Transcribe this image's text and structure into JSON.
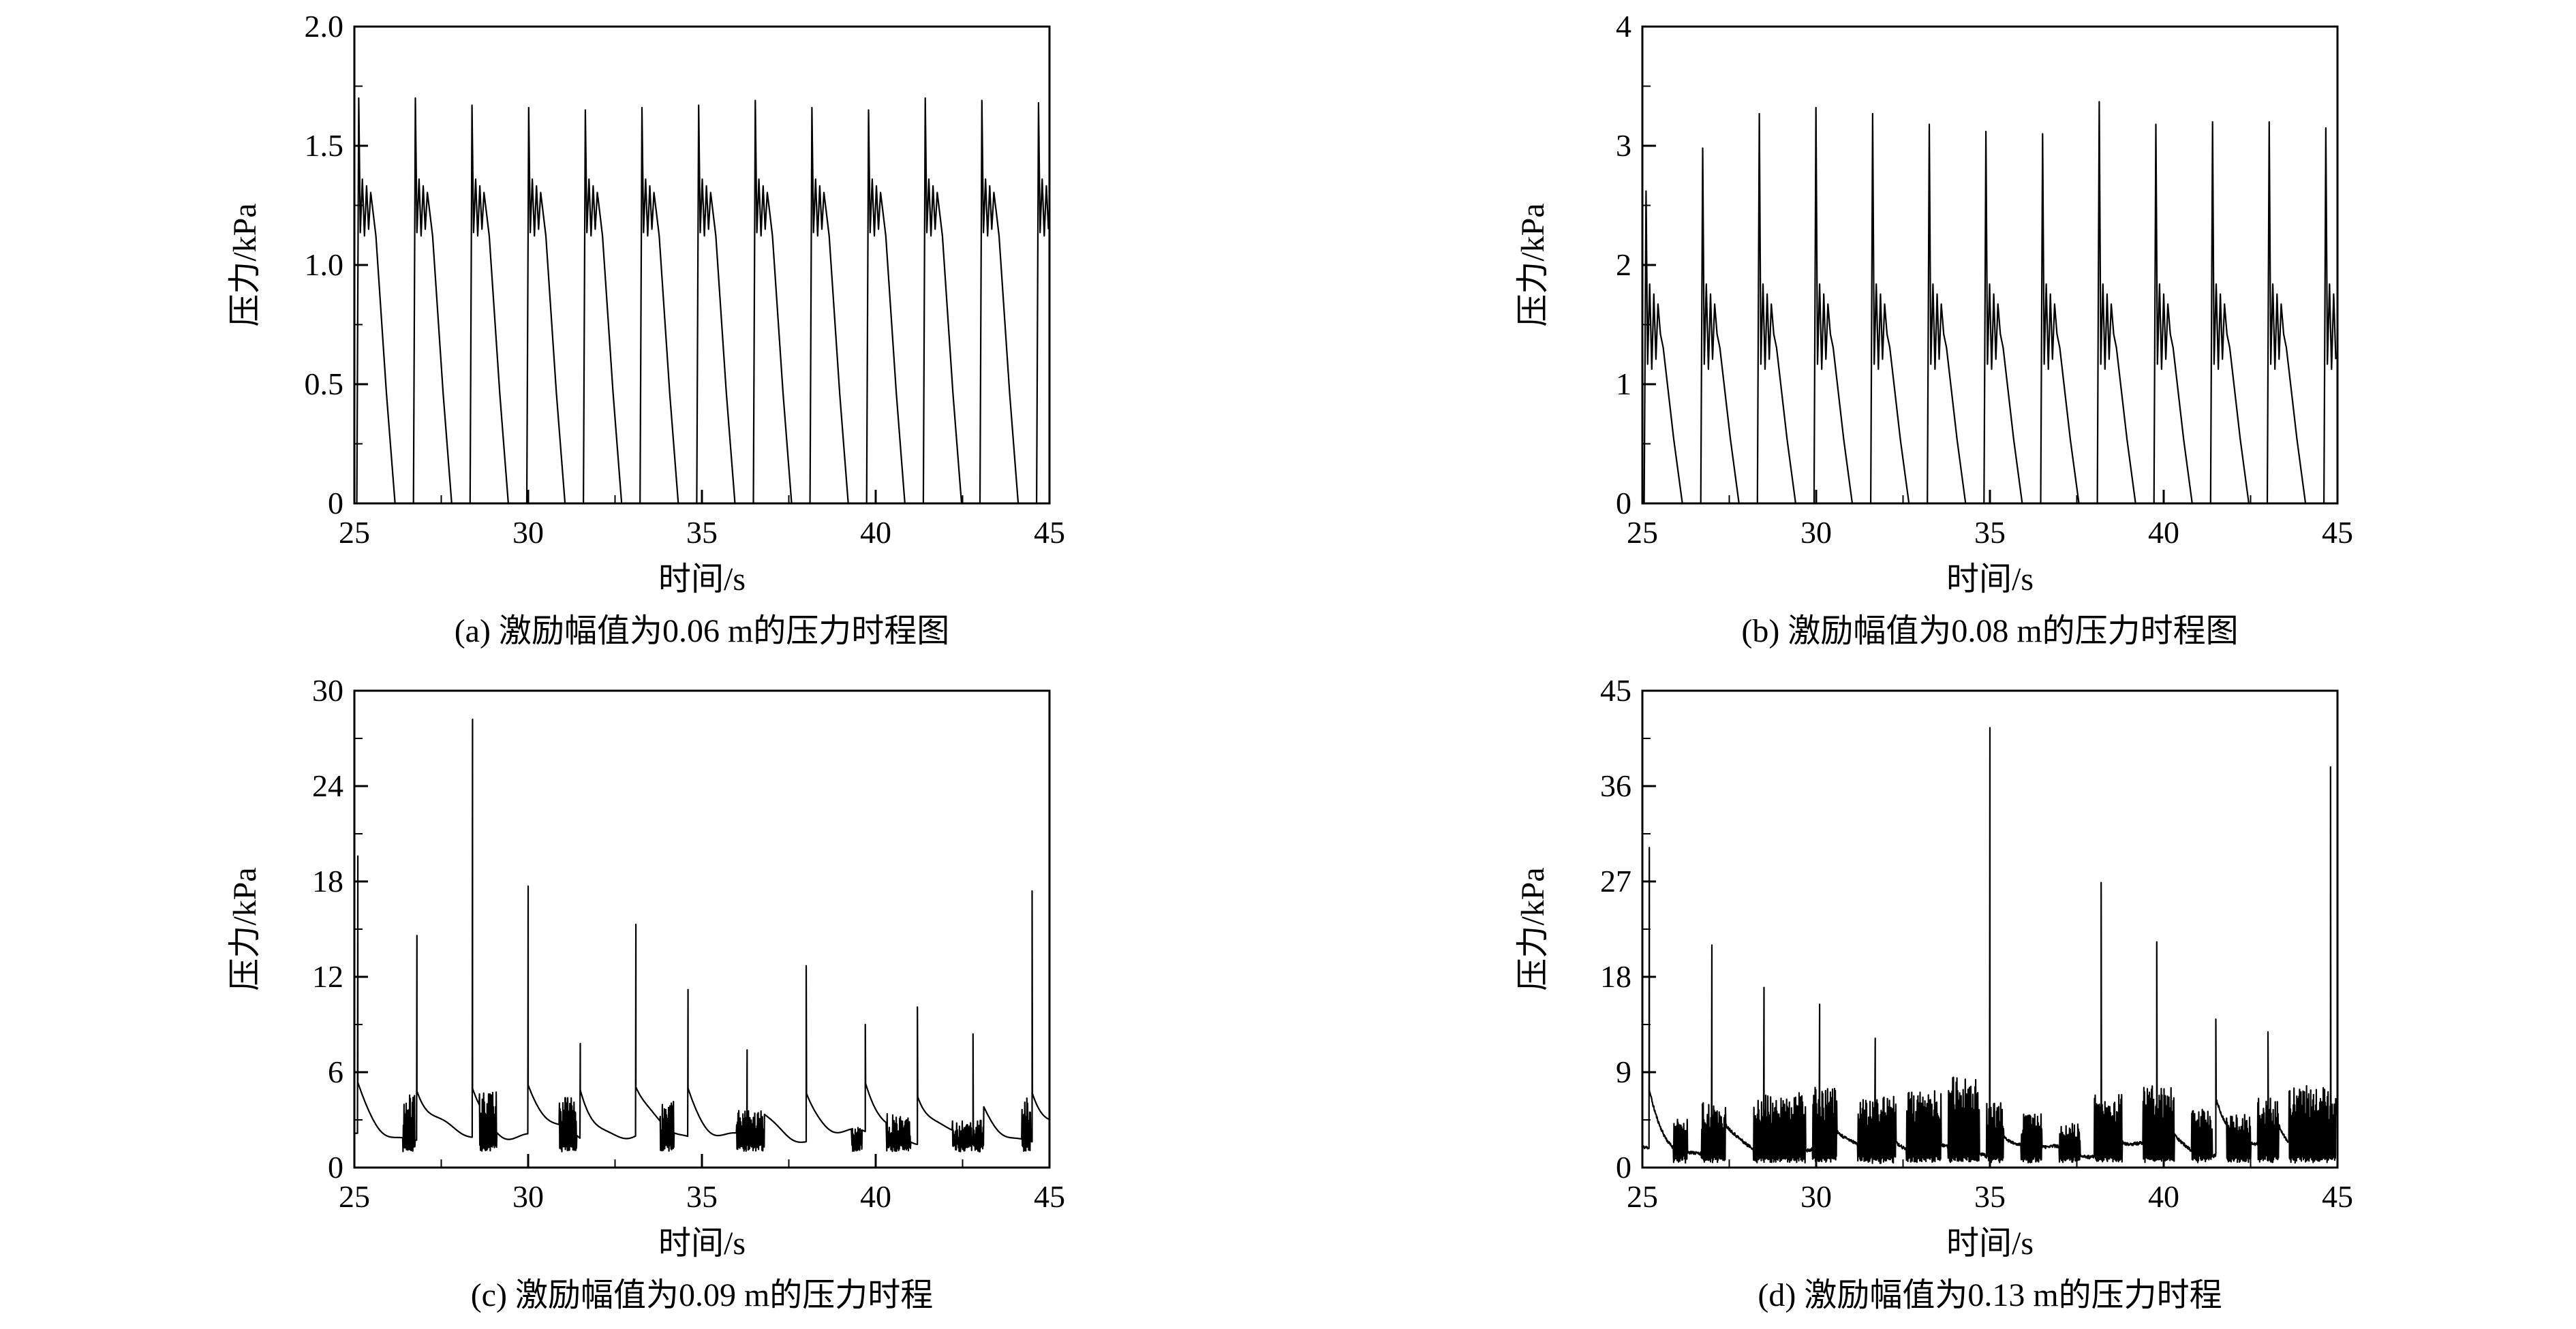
{
  "page": {
    "background": "#ffffff",
    "text_color": "#000000",
    "line_color": "#000000"
  },
  "chart_data": [
    {
      "id": "a",
      "type": "line",
      "caption": "(a) 激励幅值为0.06 m的压力时程图",
      "xlabel": "时间/s",
      "ylabel": "压力/kPa",
      "xlim": [
        25,
        45
      ],
      "ylim": [
        0,
        2.0
      ],
      "xticks": [
        25,
        30,
        35,
        40,
        45
      ],
      "xtick_labels": [
        "25",
        "30",
        "35",
        "40",
        "45"
      ],
      "yticks": [
        0,
        0.5,
        1.0,
        1.5,
        2.0
      ],
      "ytick_labels": [
        "0",
        "0.5",
        "1.0",
        "1.5",
        "2.0"
      ],
      "minor": {
        "x": 2.5,
        "y": 0.25
      },
      "signal": {
        "kind": "periodic",
        "t0": 25.07,
        "period": 1.63,
        "peaks": [
          1.7,
          1.7,
          1.67,
          1.66,
          1.65,
          1.66,
          1.67,
          1.69,
          1.66,
          1.65,
          1.7,
          1.69,
          1.68
        ],
        "plateau": 1.22,
        "osc": 0.14,
        "decay": 0.55
      }
    },
    {
      "id": "b",
      "type": "line",
      "caption": "(b) 激励幅值为0.08 m的压力时程图",
      "xlabel": "时间/s",
      "ylabel": "压力/kPa",
      "xlim": [
        25,
        45
      ],
      "ylim": [
        0,
        4
      ],
      "xticks": [
        25,
        30,
        35,
        40,
        45
      ],
      "xtick_labels": [
        "25",
        "30",
        "35",
        "40",
        "45"
      ],
      "yticks": [
        0,
        1,
        2,
        3,
        4
      ],
      "ytick_labels": [
        "0",
        "1",
        "2",
        "3",
        "4"
      ],
      "minor": {
        "x": 2.5,
        "y": 0.5
      },
      "signal": {
        "kind": "periodic",
        "t0": 25.05,
        "period": 1.63,
        "peaks": [
          2.62,
          2.98,
          3.27,
          3.32,
          3.27,
          3.18,
          3.12,
          3.1,
          3.37,
          3.18,
          3.2,
          3.2,
          3.15
        ],
        "plateau": 1.42,
        "osc": 0.42,
        "decay": 0.55
      }
    },
    {
      "id": "c",
      "type": "line",
      "caption": "(c) 激励幅值为0.09 m的压力时程",
      "xlabel": "时间/s",
      "ylabel": "压力/kPa",
      "xlim": [
        25,
        45
      ],
      "ylim": [
        0,
        30
      ],
      "xticks": [
        25,
        30,
        35,
        40,
        45
      ],
      "xtick_labels": [
        "25",
        "30",
        "35",
        "40",
        "45"
      ],
      "yticks": [
        0,
        6,
        12,
        18,
        24,
        30
      ],
      "ytick_labels": [
        "0",
        "6",
        "12",
        "18",
        "24",
        "30"
      ],
      "minor": {
        "x": 2.5,
        "y": 3
      },
      "signal": {
        "kind": "spiky",
        "seed": 7,
        "base": 1.8,
        "wiggle": 0.35,
        "tail": 3.2,
        "tau": 0.5,
        "burst_floor": 1.0,
        "noise": 0,
        "spikes": [
          [
            25.1,
            19.6
          ],
          [
            26.8,
            14.6
          ],
          [
            28.4,
            28.2
          ],
          [
            30.0,
            17.7
          ],
          [
            31.5,
            7.8
          ],
          [
            33.1,
            15.3
          ],
          [
            34.6,
            11.2
          ],
          [
            36.3,
            7.4
          ],
          [
            38.0,
            12.7
          ],
          [
            39.7,
            9.0
          ],
          [
            41.2,
            10.1
          ],
          [
            42.8,
            8.4
          ],
          [
            44.5,
            17.4
          ]
        ],
        "bursts": [
          [
            26.4,
            26.75,
            4.6
          ],
          [
            28.6,
            29.1,
            4.8
          ],
          [
            30.9,
            31.4,
            4.4
          ],
          [
            33.8,
            34.2,
            4.2
          ],
          [
            36.0,
            36.8,
            3.6
          ],
          [
            39.3,
            39.6,
            2.8
          ],
          [
            40.3,
            41.0,
            3.4
          ],
          [
            42.2,
            43.1,
            3.0
          ],
          [
            44.2,
            44.45,
            4.6
          ]
        ]
      }
    },
    {
      "id": "d",
      "type": "line",
      "caption": "(d) 激励幅值为0.13 m的压力时程",
      "xlabel": "时间/s",
      "ylabel": "压力/kPa",
      "xlim": [
        25,
        45
      ],
      "ylim": [
        0,
        45
      ],
      "xticks": [
        25,
        30,
        35,
        40,
        45
      ],
      "xtick_labels": [
        "25",
        "30",
        "35",
        "40",
        "45"
      ],
      "yticks": [
        0,
        9,
        18,
        27,
        36,
        45
      ],
      "ytick_labels": [
        "0",
        "9",
        "18",
        "27",
        "36",
        "45"
      ],
      "minor": {
        "x": 2.5,
        "y": 4.5
      },
      "signal": {
        "kind": "spiky",
        "seed": 11,
        "base": 1.3,
        "wiggle": 0.5,
        "tail": 5.5,
        "tau": 0.4,
        "burst_floor": 0.4,
        "noise": 0.3,
        "spikes": [
          [
            25.2,
            30.2
          ],
          [
            27.0,
            21.0
          ],
          [
            28.5,
            17.0
          ],
          [
            30.1,
            15.4
          ],
          [
            31.7,
            12.2
          ],
          [
            35.0,
            41.5
          ],
          [
            38.2,
            26.9
          ],
          [
            39.8,
            21.3
          ],
          [
            41.5,
            14.0
          ],
          [
            43.0,
            12.8
          ],
          [
            44.8,
            37.8
          ]
        ],
        "bursts": [
          [
            25.9,
            26.3,
            4.5
          ],
          [
            26.7,
            27.4,
            6.0
          ],
          [
            28.2,
            29.7,
            7.0
          ],
          [
            29.9,
            30.6,
            7.5
          ],
          [
            31.2,
            32.3,
            6.5
          ],
          [
            32.6,
            33.6,
            7.0
          ],
          [
            33.8,
            34.7,
            8.5
          ],
          [
            34.9,
            35.4,
            6.0
          ],
          [
            35.9,
            36.5,
            5.0
          ],
          [
            37.0,
            37.6,
            4.0
          ],
          [
            38.0,
            38.8,
            7.0
          ],
          [
            39.4,
            40.3,
            7.5
          ],
          [
            40.8,
            41.4,
            5.5
          ],
          [
            41.8,
            42.5,
            5.0
          ],
          [
            42.7,
            43.3,
            6.5
          ],
          [
            43.6,
            44.95,
            7.5
          ]
        ]
      }
    }
  ]
}
